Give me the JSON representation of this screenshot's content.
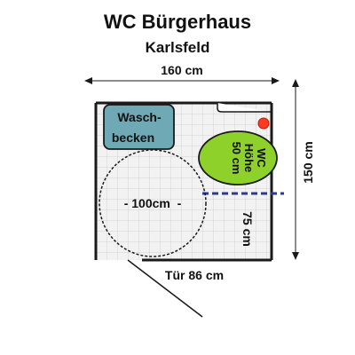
{
  "header": {
    "title": "WC Bürgerhaus",
    "subtitle": "Karlsfeld"
  },
  "dimensions": {
    "width": "160 cm",
    "depth": "150 cm",
    "inner": "75 cm",
    "turning_circle": "- 100cm  -"
  },
  "fixtures": {
    "sink": {
      "line1": "Wasch-",
      "line2": "becken"
    },
    "toilet": {
      "line1": "WC",
      "line2": "Höhe",
      "line3": "50 cm"
    }
  },
  "door": {
    "label": "Tür 86 cm"
  },
  "colors": {
    "sink": "#6fa9b5",
    "toilet": "#8ed12a",
    "grab_bar": "#2f3a8f",
    "flush_button": "#ff3b1f",
    "grid": "#d4d4d4",
    "floor": "#f2f2f2",
    "wall": "#1a1a1a"
  },
  "icons": [
    "arrow-icon"
  ]
}
